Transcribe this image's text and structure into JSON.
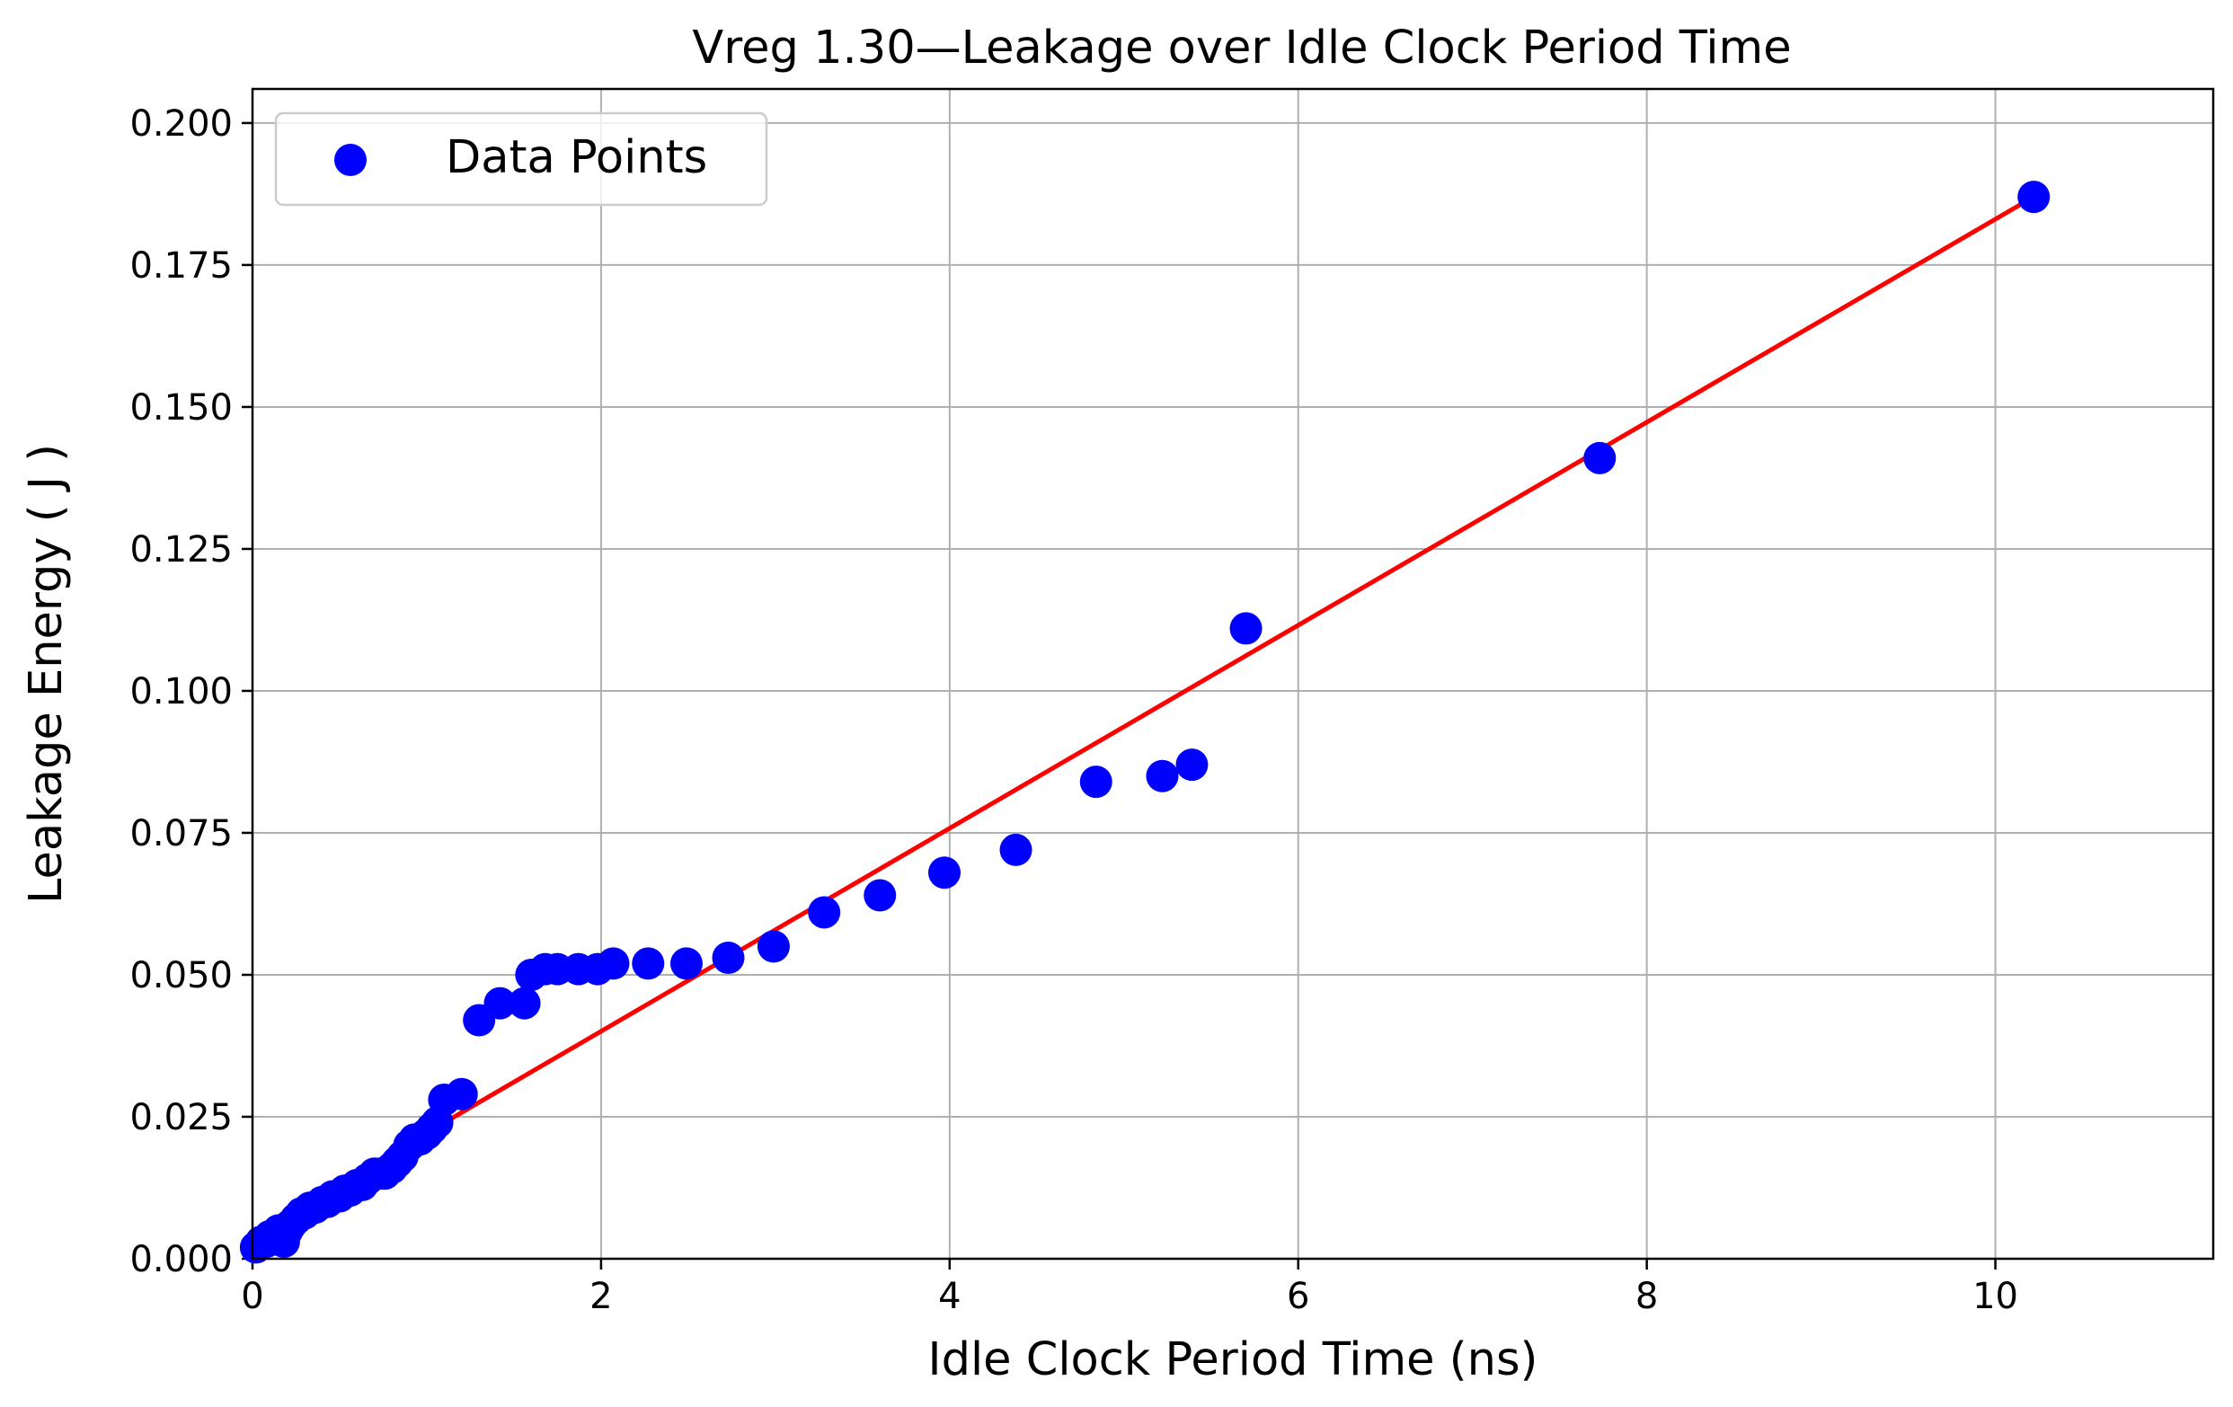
{
  "chart_data": {
    "type": "scatter",
    "title": "Vreg 1.30—Leakage over Idle Clock Period Time",
    "xlabel": "Idle Clock Period Time (ns)",
    "ylabel": "Leakage Energy ( J )",
    "xlim": [
      0,
      11.25
    ],
    "ylim": [
      0,
      0.206
    ],
    "xticks": [
      0,
      2,
      4,
      6,
      8,
      10
    ],
    "xtick_labels": [
      "0",
      "2",
      "4",
      "6",
      "8",
      "10"
    ],
    "yticks": [
      0,
      0.025,
      0.05,
      0.075,
      0.1,
      0.125,
      0.15,
      0.175,
      0.2
    ],
    "ytick_labels": [
      "0.000",
      "0.025",
      "0.050",
      "0.075",
      "0.100",
      "0.125",
      "0.150",
      "0.175",
      "0.200"
    ],
    "grid": true,
    "legend": {
      "position": "top-left",
      "entries": [
        "Data Points"
      ]
    },
    "series": [
      {
        "name": "Data Points",
        "kind": "scatter",
        "color": "#0000ff",
        "x": [
          0.02,
          0.05,
          0.08,
          0.1,
          0.12,
          0.15,
          0.18,
          0.2,
          0.22,
          0.25,
          0.28,
          0.3,
          0.33,
          0.36,
          0.4,
          0.43,
          0.46,
          0.5,
          0.53,
          0.56,
          0.6,
          0.63,
          0.66,
          0.7,
          0.73,
          0.76,
          0.8,
          0.83,
          0.86,
          0.9,
          0.93,
          0.96,
          1.0,
          1.03,
          1.06,
          1.1,
          1.2,
          1.3,
          1.42,
          1.56,
          1.6,
          1.68,
          1.75,
          1.87,
          1.98,
          2.07,
          2.27,
          2.49,
          2.73,
          2.99,
          3.28,
          3.6,
          3.97,
          4.38,
          4.84,
          5.22,
          5.39,
          5.7,
          7.73,
          10.22
        ],
        "y": [
          0.002,
          0.003,
          0.003,
          0.004,
          0.004,
          0.005,
          0.003,
          0.005,
          0.006,
          0.007,
          0.008,
          0.008,
          0.009,
          0.009,
          0.01,
          0.01,
          0.011,
          0.011,
          0.012,
          0.012,
          0.013,
          0.013,
          0.014,
          0.015,
          0.015,
          0.015,
          0.016,
          0.017,
          0.018,
          0.02,
          0.021,
          0.021,
          0.022,
          0.023,
          0.024,
          0.028,
          0.029,
          0.042,
          0.045,
          0.045,
          0.05,
          0.051,
          0.051,
          0.051,
          0.051,
          0.052,
          0.052,
          0.052,
          0.053,
          0.055,
          0.061,
          0.064,
          0.068,
          0.072,
          0.084,
          0.085,
          0.087,
          0.111,
          0.141,
          0.187
        ]
      },
      {
        "name": "",
        "kind": "line",
        "color": "#ff0000",
        "x": [
          0.0,
          10.22
        ],
        "y": [
          0.0043,
          0.187
        ]
      }
    ]
  }
}
